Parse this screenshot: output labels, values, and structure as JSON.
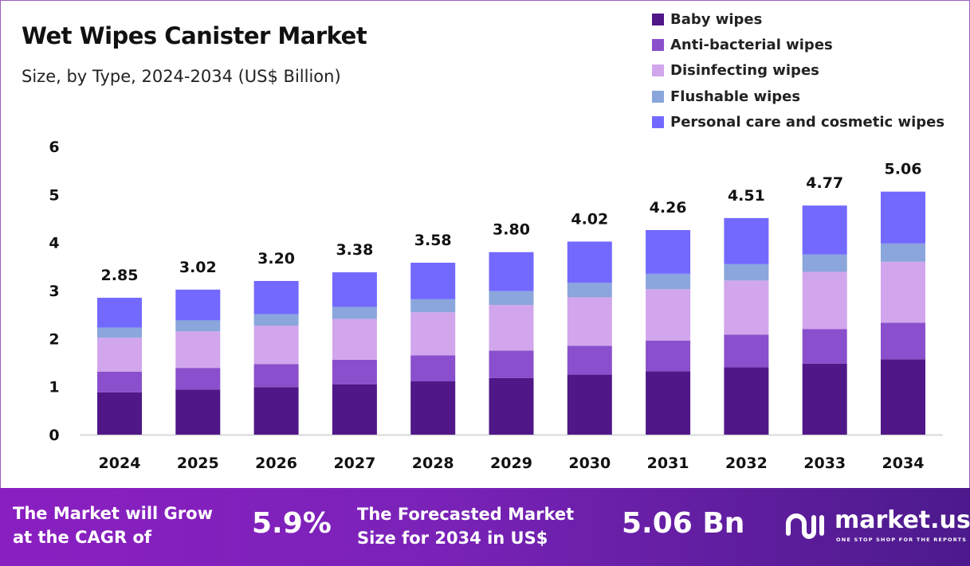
{
  "chart_data": {
    "type": "bar",
    "stacked": true,
    "title": "Wet Wipes Canister Market",
    "subtitle": "Size, by Type, 2024-2034 (US$ Billion)",
    "categories": [
      "2024",
      "2025",
      "2026",
      "2027",
      "2028",
      "2029",
      "2030",
      "2031",
      "2032",
      "2033",
      "2034"
    ],
    "totals": [
      2.85,
      3.02,
      3.2,
      3.38,
      3.58,
      3.8,
      4.02,
      4.26,
      4.51,
      4.77,
      5.06
    ],
    "total_labels": [
      "2.85",
      "3.02",
      "3.20",
      "3.38",
      "3.58",
      "3.80",
      "4.02",
      "4.26",
      "4.51",
      "4.77",
      "5.06"
    ],
    "series": [
      {
        "name": "Baby wipes",
        "color": "#4f1787",
        "values": [
          0.88,
          0.94,
          0.99,
          1.05,
          1.11,
          1.18,
          1.25,
          1.32,
          1.4,
          1.48,
          1.57
        ]
      },
      {
        "name": "Anti-bacterial wipes",
        "color": "#8a4fcc",
        "values": [
          0.43,
          0.45,
          0.48,
          0.51,
          0.54,
          0.57,
          0.6,
          0.64,
          0.68,
          0.72,
          0.76
        ]
      },
      {
        "name": "Disinfecting wipes",
        "color": "#d1a6ec",
        "values": [
          0.71,
          0.76,
          0.8,
          0.85,
          0.9,
          0.95,
          1.01,
          1.07,
          1.13,
          1.19,
          1.27
        ]
      },
      {
        "name": "Flushable wipes",
        "color": "#8aa6dc",
        "values": [
          0.21,
          0.23,
          0.24,
          0.25,
          0.27,
          0.29,
          0.3,
          0.32,
          0.34,
          0.36,
          0.38
        ]
      },
      {
        "name": "Personal care and cosmetic wipes",
        "color": "#7369ff",
        "values": [
          0.62,
          0.64,
          0.69,
          0.72,
          0.76,
          0.81,
          0.86,
          0.91,
          0.96,
          1.02,
          1.08
        ]
      }
    ],
    "ylim": [
      0,
      6
    ],
    "yticks": [
      "0",
      "1",
      "2",
      "3",
      "4",
      "5",
      "6"
    ],
    "grid": false,
    "legend_position": "top-right",
    "xlabel": "",
    "ylabel": ""
  },
  "footer": {
    "cagr_label": "The Market will Grow at the CAGR of",
    "cagr_label_line1": "The Market will Grow",
    "cagr_label_line2": "at the CAGR of",
    "cagr_value": "5.9%",
    "forecast_label_line1": "The Forecasted Market",
    "forecast_label_line2": "Size for 2034 in US$",
    "forecast_value": "5.06 Bn",
    "logo_name": "market.us",
    "logo_tagline": "ONE STOP SHOP FOR THE REPORTS"
  }
}
